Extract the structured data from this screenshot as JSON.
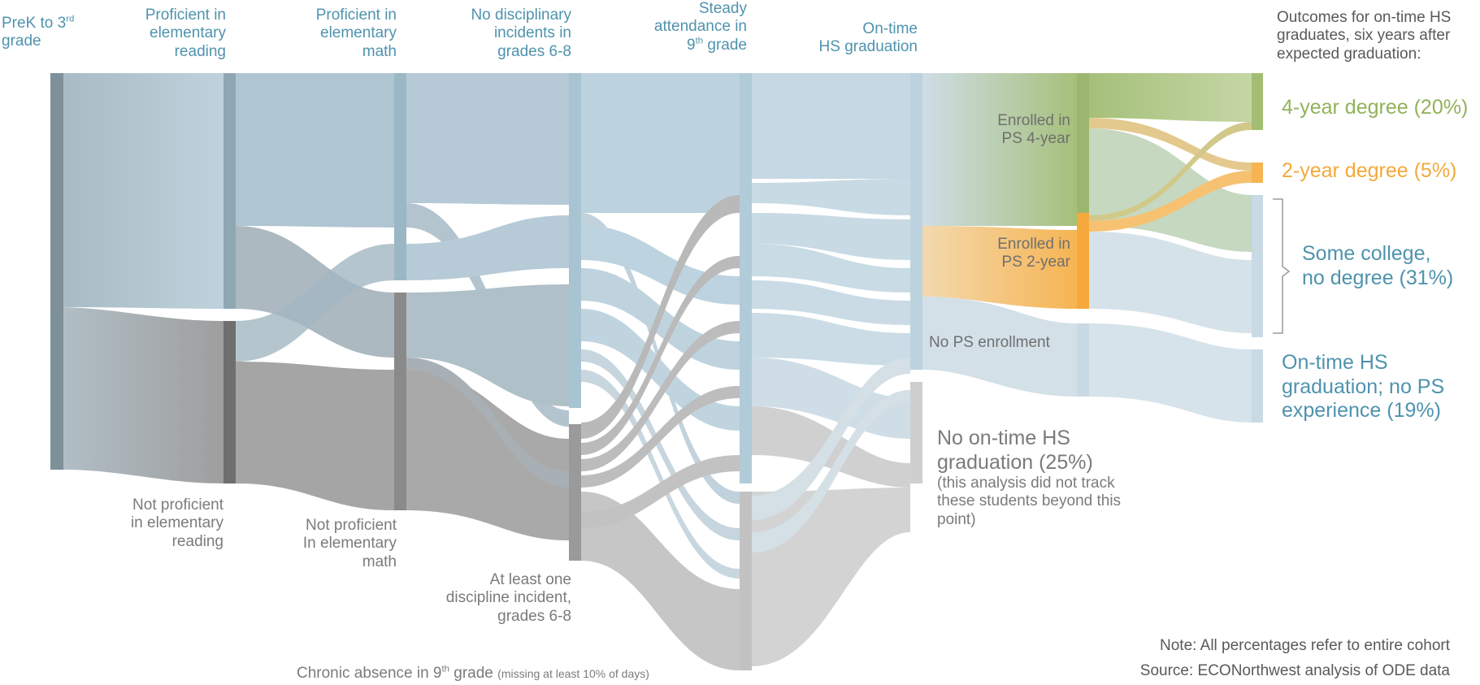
{
  "headers": {
    "prek": "PreK to 3rd grade",
    "prek_a": "PreK to 3",
    "prek_sup": "rd",
    "prek_b": "grade",
    "reading_1": "Proficient in",
    "reading_2": "elementary",
    "reading_3": "reading",
    "math_1": "Proficient in",
    "math_2": "elementary",
    "math_3": "math",
    "disc_1": "No disciplinary",
    "disc_2": "incidents in",
    "disc_3": "grades 6-8",
    "att_1": "Steady",
    "att_2": "attendance in",
    "att_3a": "9",
    "att_3sup": "th",
    "att_3b": " grade",
    "grad_1": "On-time",
    "grad_2": "HS graduation",
    "out_1": "Outcomes for on-time HS",
    "out_2": "graduates, six years after",
    "out_3": "expected graduation:"
  },
  "node_labels": {
    "np_read_1": "Not proficient",
    "np_read_2": "in elementary",
    "np_read_3": "reading",
    "np_math_1": "Not proficient",
    "np_math_2": "In elementary",
    "np_math_3": "math",
    "disc_1": "At least one",
    "disc_2": "discipline incident,",
    "disc_3": "grades 6-8",
    "chronic_a": "Chronic absence in 9",
    "chronic_sup": "th",
    "chronic_b": " grade",
    "chronic_note": "(missing at least 10% of days)",
    "ps4_1": "Enrolled in",
    "ps4_2": "PS 4-year",
    "ps2_1": "Enrolled in",
    "ps2_2": "PS 2-year",
    "nops": "No PS enrollment",
    "nograd_1": "No on-time HS",
    "nograd_2": "graduation (25%)",
    "nograd_3": "(this analysis did not track",
    "nograd_4": "these students beyond this",
    "nograd_5": "point)"
  },
  "outcomes": {
    "four_year": "4-year degree (20%)",
    "two_year": "2-year degree (5%)",
    "some_1": "Some college,",
    "some_2": "no degree (31%)",
    "nops_1": "On-time HS",
    "nops_2": "graduation; no PS",
    "nops_3": "experience (19%)"
  },
  "footer": {
    "note": "Note: All percentages refer to entire cohort",
    "source": "Source: ECONorthwest analysis of ODE data"
  },
  "colors": {
    "blue_label": "#4f93ad",
    "blue_flow": "#a9c8d8",
    "gray_flow": "#9e9e9e",
    "green": "#92b25a",
    "orange": "#f4a93a"
  }
}
